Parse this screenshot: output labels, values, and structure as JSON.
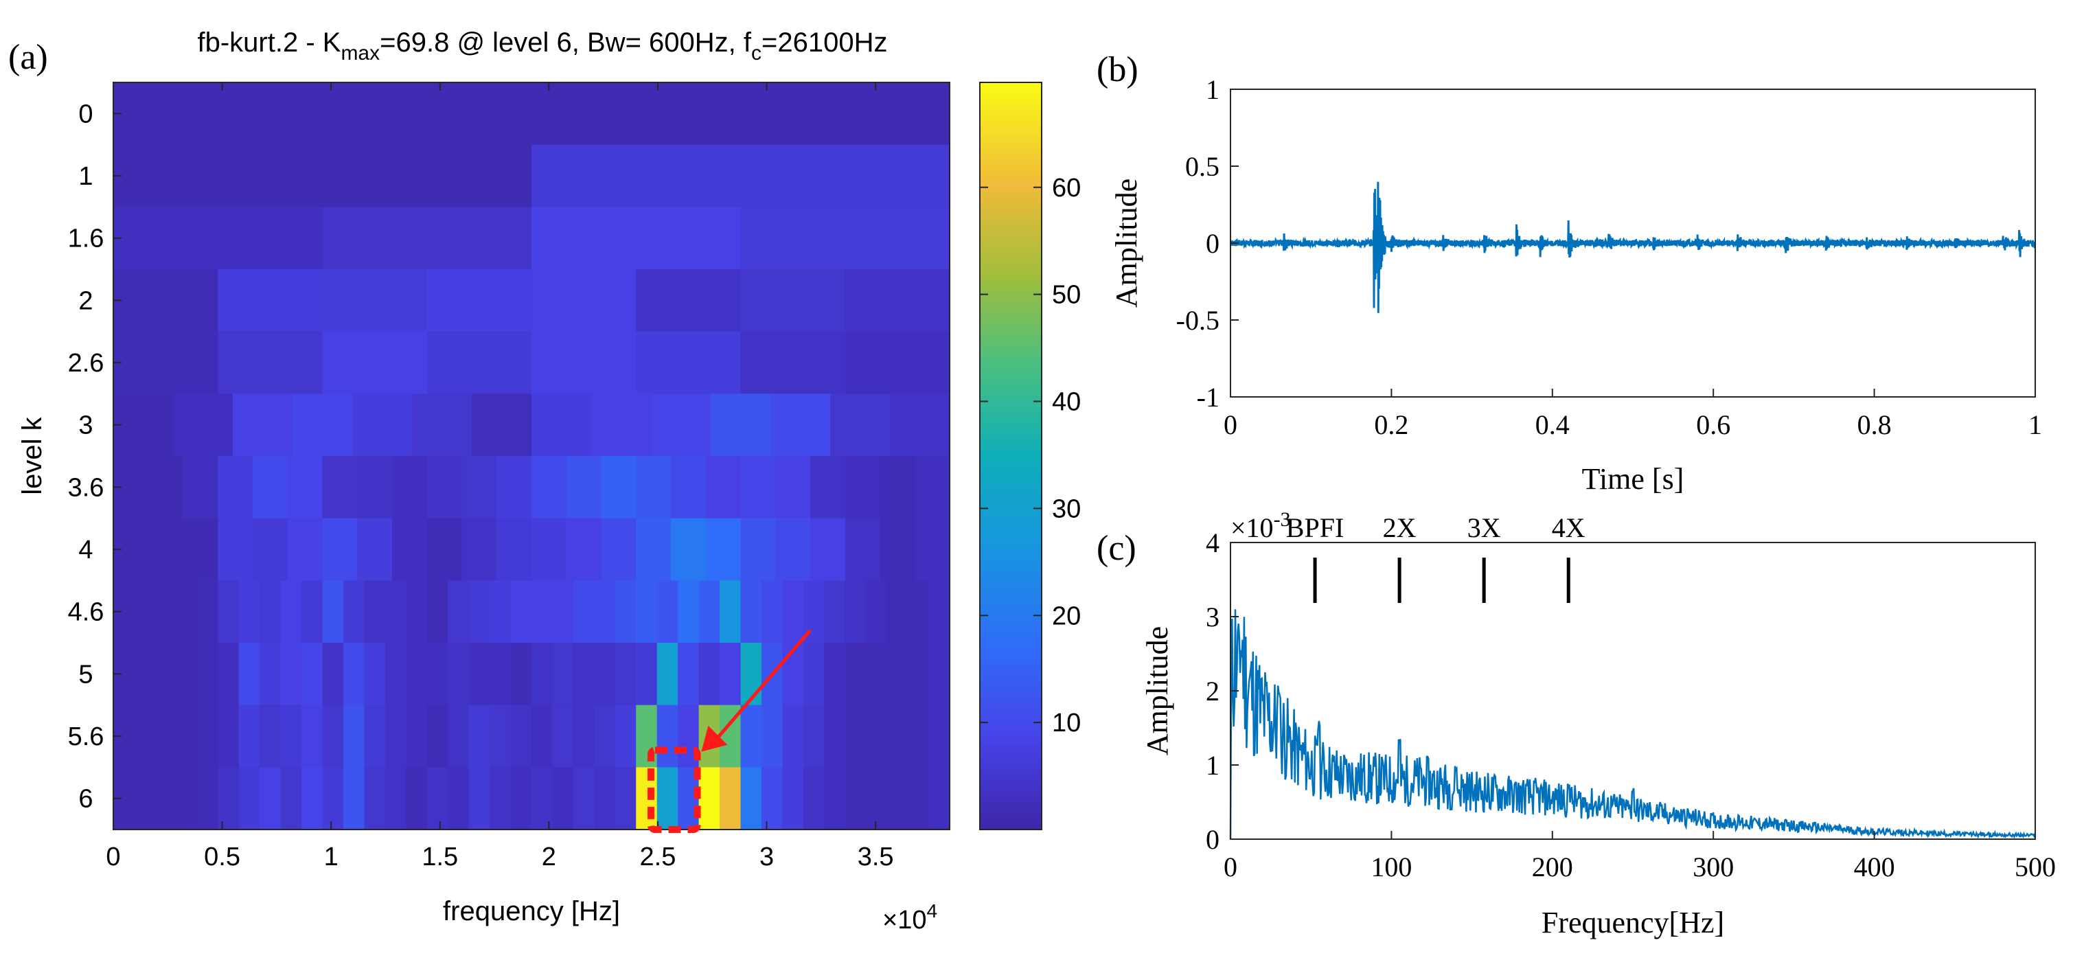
{
  "chart_data": [
    {
      "panel_label": "(a)",
      "type": "heatmap",
      "title": {
        "prefix": "fb-kurt.2 - K",
        "sub1": "max",
        "mid": "=69.8 @ level 6, Bw= 600Hz, f",
        "sub2": "c",
        "suffix": "=26100Hz"
      },
      "xlabel": "frequency [Hz]",
      "ylabel": "level k",
      "x_multiplier": "×10",
      "x_multiplier_exp": "4",
      "xlim": [
        0,
        3.84
      ],
      "x_ticks": [
        "0",
        "0.5",
        "1",
        "1.5",
        "2",
        "2.5",
        "3",
        "3.5"
      ],
      "x_tick_values": [
        0,
        0.5,
        1,
        1.5,
        2,
        2.5,
        3,
        3.5
      ],
      "levels": [
        "0",
        "1",
        "1.6",
        "2",
        "2.6",
        "3",
        "3.6",
        "4",
        "4.6",
        "5",
        "5.6",
        "6"
      ],
      "colorbar": {
        "min": 0,
        "max": 69.8,
        "ticks": [
          10,
          20,
          30,
          40,
          50,
          60
        ]
      },
      "rows": [
        [
          1.5
        ],
        [
          1.5,
          6
        ],
        [
          3,
          4.5,
          8,
          6.5
        ],
        [
          2,
          7,
          6.5,
          7.5,
          8,
          4,
          5,
          4
        ],
        [
          2,
          5,
          8,
          6,
          8,
          7,
          4,
          3
        ],
        [
          1.5,
          3,
          8,
          9,
          7,
          5,
          2.5,
          7,
          8,
          9,
          12,
          10,
          5,
          4
        ],
        [
          1.5,
          1.5,
          3,
          7,
          10,
          9,
          4.5,
          4,
          3,
          4,
          5,
          7,
          10,
          12,
          15,
          13,
          10,
          8,
          9,
          8,
          4,
          3,
          2,
          3
        ],
        [
          1.5,
          1.5,
          1.5,
          7,
          6,
          8,
          10,
          7,
          3,
          2,
          4,
          6,
          7,
          8,
          10,
          14,
          20,
          17,
          12,
          10,
          8,
          4,
          2,
          3
        ],
        [
          1.5,
          1.5,
          1.5,
          1.5,
          2,
          5,
          7,
          6,
          8,
          6,
          12,
          6,
          4,
          4,
          3,
          2,
          5,
          6,
          7,
          8,
          8,
          8,
          10,
          10,
          12,
          14,
          12,
          18,
          14,
          26,
          12,
          10,
          8,
          7,
          5,
          4,
          3,
          2,
          2,
          3
        ],
        [
          1.5,
          1.5,
          1.5,
          1.5,
          2,
          3,
          10,
          7,
          8,
          9,
          4,
          10,
          7,
          4,
          3,
          3,
          4,
          3,
          3,
          2,
          4,
          5,
          4,
          4,
          5,
          6,
          30,
          10,
          6,
          8,
          33,
          12,
          8,
          6,
          3,
          2,
          2,
          2,
          2,
          3
        ],
        [
          1.5,
          1.5,
          1.5,
          1.5,
          2,
          3,
          7,
          5,
          6,
          8,
          5,
          12,
          6,
          4,
          3,
          2,
          4,
          6,
          5,
          4,
          3,
          5,
          4,
          5,
          7,
          45,
          12,
          8,
          50,
          45,
          14,
          12,
          7,
          5,
          3,
          2,
          2,
          2,
          2,
          3
        ],
        [
          1.5,
          1.5,
          1.5,
          1.5,
          2,
          4,
          6,
          8,
          5,
          9,
          6,
          12,
          5,
          4,
          2,
          4,
          3,
          6,
          4,
          3,
          4,
          3,
          5,
          4,
          5,
          68,
          30,
          12,
          69.8,
          60,
          20,
          10,
          7,
          4,
          3,
          2,
          2,
          2,
          2,
          3
        ]
      ],
      "annotation": {
        "box_x": [
          2.5,
          2.65
        ],
        "box_level": "6",
        "arrow_from": [
          3.2,
          "5"
        ],
        "arrow_to": [
          2.7,
          "5.6"
        ]
      }
    },
    {
      "panel_label": "(b)",
      "type": "line",
      "xlabel": "Time [s]",
      "ylabel": "Amplitude",
      "xlim": [
        0,
        1
      ],
      "ylim": [
        -1,
        1
      ],
      "x_ticks": [
        "0",
        "0.2",
        "0.4",
        "0.6",
        "0.8",
        "1"
      ],
      "x_tick_values": [
        0,
        0.2,
        0.4,
        0.6,
        0.8,
        1
      ],
      "y_ticks": [
        "-1",
        "-0.5",
        "0",
        "0.5",
        "1"
      ],
      "y_tick_values": [
        -1,
        -0.5,
        0,
        0.5,
        1
      ],
      "color": "#0072BD",
      "impulses": [
        {
          "t": 0.066,
          "a": 0.08
        },
        {
          "t": 0.178,
          "a": 0.62
        },
        {
          "t": 0.183,
          "a": 0.45
        },
        {
          "t": 0.2,
          "a": 0.08
        },
        {
          "t": 0.263,
          "a": 0.07
        },
        {
          "t": 0.315,
          "a": 0.09
        },
        {
          "t": 0.355,
          "a": 0.13
        },
        {
          "t": 0.385,
          "a": 0.08
        },
        {
          "t": 0.42,
          "a": 0.15
        },
        {
          "t": 0.47,
          "a": 0.07
        },
        {
          "t": 0.525,
          "a": 0.07
        },
        {
          "t": 0.58,
          "a": 0.06
        },
        {
          "t": 0.63,
          "a": 0.06
        },
        {
          "t": 0.69,
          "a": 0.07
        },
        {
          "t": 0.74,
          "a": 0.06
        },
        {
          "t": 0.79,
          "a": 0.06
        },
        {
          "t": 0.84,
          "a": 0.06
        },
        {
          "t": 0.9,
          "a": 0.06
        },
        {
          "t": 0.96,
          "a": 0.06
        },
        {
          "t": 0.98,
          "a": 0.12
        }
      ],
      "noise_amplitude": 0.02
    },
    {
      "panel_label": "(c)",
      "type": "line",
      "xlabel": "Frequency[Hz]",
      "ylabel": "Amplitude",
      "y_multiplier": "×10",
      "y_multiplier_exp": "-3",
      "xlim": [
        0,
        500
      ],
      "ylim": [
        0,
        4
      ],
      "x_ticks": [
        "0",
        "100",
        "200",
        "300",
        "400",
        "500"
      ],
      "x_tick_values": [
        0,
        100,
        200,
        300,
        400,
        500
      ],
      "y_ticks": [
        "0",
        "1",
        "2",
        "3",
        "4"
      ],
      "y_tick_values": [
        0,
        1,
        2,
        3,
        4
      ],
      "color": "#0072BD",
      "markers": [
        {
          "label": "BPFI",
          "x": 52.5
        },
        {
          "label": "2X",
          "x": 105
        },
        {
          "label": "3X",
          "x": 157.5
        },
        {
          "label": "4X",
          "x": 210
        }
      ],
      "envelope": [
        [
          0,
          2.0
        ],
        [
          5,
          2.9
        ],
        [
          10,
          2.1
        ],
        [
          20,
          1.7
        ],
        [
          30,
          1.5
        ],
        [
          40,
          1.2
        ],
        [
          50,
          1.0
        ],
        [
          70,
          0.85
        ],
        [
          100,
          0.8
        ],
        [
          120,
          0.78
        ],
        [
          150,
          0.65
        ],
        [
          200,
          0.55
        ],
        [
          250,
          0.4
        ],
        [
          300,
          0.25
        ],
        [
          350,
          0.18
        ],
        [
          400,
          0.1
        ],
        [
          450,
          0.07
        ],
        [
          500,
          0.05
        ]
      ],
      "peaks": [
        [
          5,
          3.0
        ],
        [
          30,
          2.1
        ],
        [
          55,
          1.6
        ],
        [
          105,
          1.45
        ],
        [
          140,
          1.0
        ],
        [
          210,
          0.75
        ],
        [
          250,
          0.7
        ]
      ]
    }
  ]
}
